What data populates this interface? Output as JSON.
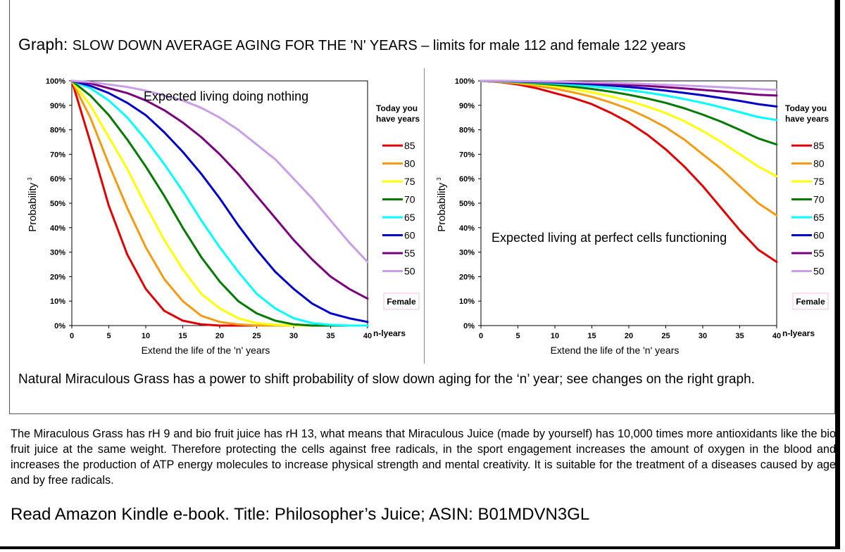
{
  "title": {
    "prefix": "Graph:",
    "text": "SLOW DOWN AVERAGE AGING FOR THE 'N' YEARS – limits for male 112 and female 122 years"
  },
  "chart_data": [
    {
      "type": "line",
      "annotation": "Expected living doing nothing",
      "xlabel": "Extend the life of the 'n' years",
      "xunit": "n-lyears",
      "ylabel": "Probability",
      "ylabel_sup": "3",
      "xlim": [
        0,
        40
      ],
      "ylim": [
        0,
        100
      ],
      "xticks": [
        0,
        5,
        10,
        15,
        20,
        25,
        30,
        35,
        40
      ],
      "yticks": [
        "0%",
        "10%",
        "20%",
        "30%",
        "40%",
        "50%",
        "60%",
        "70%",
        "80%",
        "90%",
        "100%"
      ],
      "legend_title": "Today you have years",
      "legend_title_lines": [
        "Today you",
        "have years"
      ],
      "badge": "Female",
      "x": [
        0,
        2.5,
        5,
        7.5,
        10,
        12.5,
        15,
        17.5,
        20,
        22.5,
        25,
        27.5,
        30,
        32.5,
        35,
        37.5,
        40
      ],
      "series": [
        {
          "name": "85",
          "color": "#e00000",
          "values": [
            100,
            75,
            49,
            29,
            15,
            6,
            2,
            0.5,
            0,
            0,
            0,
            0,
            0,
            0,
            0,
            0,
            0
          ]
        },
        {
          "name": "80",
          "color": "#f39c12",
          "values": [
            100,
            85,
            66,
            48,
            32,
            19,
            10,
            4,
            1.5,
            0.5,
            0,
            0,
            0,
            0,
            0,
            0,
            0
          ]
        },
        {
          "name": "75",
          "color": "#ffff00",
          "values": [
            100,
            90,
            77,
            64,
            49,
            35,
            23,
            13,
            7,
            3,
            1,
            0.3,
            0,
            0,
            0,
            0,
            0
          ]
        },
        {
          "name": "70",
          "color": "#007a00",
          "values": [
            100,
            94,
            86,
            76,
            65,
            53,
            40,
            28,
            18,
            10,
            5,
            2,
            0.5,
            0,
            0,
            0,
            0
          ]
        },
        {
          "name": "65",
          "color": "#00ffff",
          "values": [
            100,
            97,
            92,
            85,
            76,
            66,
            55,
            43,
            32,
            22,
            13,
            7,
            3,
            1,
            0.3,
            0,
            0
          ]
        },
        {
          "name": "60",
          "color": "#0000cc",
          "values": [
            100,
            98,
            95,
            91,
            86,
            79,
            71,
            62,
            52,
            41,
            31,
            22,
            15,
            9,
            5,
            3,
            1.5
          ]
        },
        {
          "name": "55",
          "color": "#7b0080",
          "values": [
            100,
            99,
            97,
            95,
            92,
            88,
            83,
            77,
            70,
            62,
            53,
            44,
            35,
            27,
            20,
            15,
            11
          ]
        },
        {
          "name": "50",
          "color": "#c89ee8",
          "values": [
            100,
            99.5,
            98.5,
            97.5,
            96,
            94,
            92,
            89,
            85,
            80,
            74,
            68,
            60,
            52,
            43,
            34,
            26
          ]
        }
      ]
    },
    {
      "type": "line",
      "annotation": "Expected living at perfect cells functioning",
      "xlabel": "Extend the life of the 'n' years",
      "xunit": "n-lyears",
      "ylabel": "Probability",
      "ylabel_sup": "3",
      "xlim": [
        0,
        40
      ],
      "ylim": [
        0,
        100
      ],
      "xticks": [
        0,
        5,
        10,
        15,
        20,
        25,
        30,
        35,
        40
      ],
      "yticks": [
        "0%",
        "10%",
        "20%",
        "30%",
        "40%",
        "50%",
        "60%",
        "70%",
        "80%",
        "90%",
        "100%"
      ],
      "legend_title": "Today you have years",
      "legend_title_lines": [
        "Today you",
        "have years"
      ],
      "badge": "Female",
      "x": [
        0,
        2.5,
        5,
        7.5,
        10,
        12.5,
        15,
        17.5,
        20,
        22.5,
        25,
        27.5,
        30,
        32.5,
        35,
        37.5,
        40
      ],
      "series": [
        {
          "name": "85",
          "color": "#e00000",
          "values": [
            100,
            99.5,
            98.5,
            97,
            95,
            93,
            90.5,
            87,
            83,
            78,
            72,
            65,
            57,
            48,
            39,
            31,
            26
          ]
        },
        {
          "name": "80",
          "color": "#f39c12",
          "values": [
            100,
            99.6,
            99,
            98,
            96.8,
            95.3,
            93.5,
            91.2,
            88.5,
            85,
            81,
            76,
            70,
            64,
            57,
            50,
            45
          ]
        },
        {
          "name": "75",
          "color": "#ffff00",
          "values": [
            100,
            99.7,
            99.3,
            98.6,
            97.7,
            96.6,
            95.3,
            93.7,
            91.8,
            89.5,
            86.8,
            83.5,
            79.5,
            75,
            70,
            65,
            61
          ]
        },
        {
          "name": "70",
          "color": "#007a00",
          "values": [
            100,
            99.8,
            99.5,
            99,
            98.4,
            97.6,
            96.7,
            95.6,
            94.3,
            92.8,
            91,
            88.8,
            86.2,
            83.3,
            80,
            76.5,
            74
          ]
        },
        {
          "name": "65",
          "color": "#00ffff",
          "values": [
            100,
            99.85,
            99.6,
            99.3,
            98.9,
            98.4,
            97.8,
            97.1,
            96.2,
            95.2,
            94,
            92.6,
            91,
            89.2,
            87.2,
            85.2,
            84
          ]
        },
        {
          "name": "60",
          "color": "#0000cc",
          "values": [
            100,
            99.9,
            99.75,
            99.55,
            99.3,
            99,
            98.6,
            98.1,
            97.5,
            96.8,
            96,
            95.1,
            94.1,
            93,
            91.8,
            90.5,
            89.5
          ]
        },
        {
          "name": "55",
          "color": "#7b0080",
          "values": [
            100,
            99.95,
            99.85,
            99.7,
            99.5,
            99.3,
            99,
            98.7,
            98.3,
            97.9,
            97.4,
            96.9,
            96.3,
            95.7,
            95,
            94.3,
            94
          ]
        },
        {
          "name": "50",
          "color": "#c89ee8",
          "values": [
            100,
            99.97,
            99.9,
            99.8,
            99.7,
            99.55,
            99.4,
            99.2,
            99,
            98.7,
            98.4,
            98.1,
            97.8,
            97.4,
            97,
            96.6,
            96.3
          ]
        }
      ]
    }
  ],
  "caption": "Natural Miraculous Grass has a power to shift probability of slow down aging for the ‘n’ year; see changes on the right graph.",
  "paragraph": "The Miraculous Grass has rH 9 and bio fruit juice has rH 13, what means that Miraculous Juice (made by yourself) has 10,000 times more antioxidants like the bio fruit juice at the same weight. Therefore protecting the cells against free radicals, in the sport engagement increases the amount of oxygen in the blood and increases the production of ATP energy molecules to increase physical strength and mental creativity. It is suitable for the treatment of a diseases caused by age and by free radicals.",
  "read_more": "Read Amazon Kindle e-book. Title: Philosopher’s Juice; ASIN: B01MDVN3GL"
}
